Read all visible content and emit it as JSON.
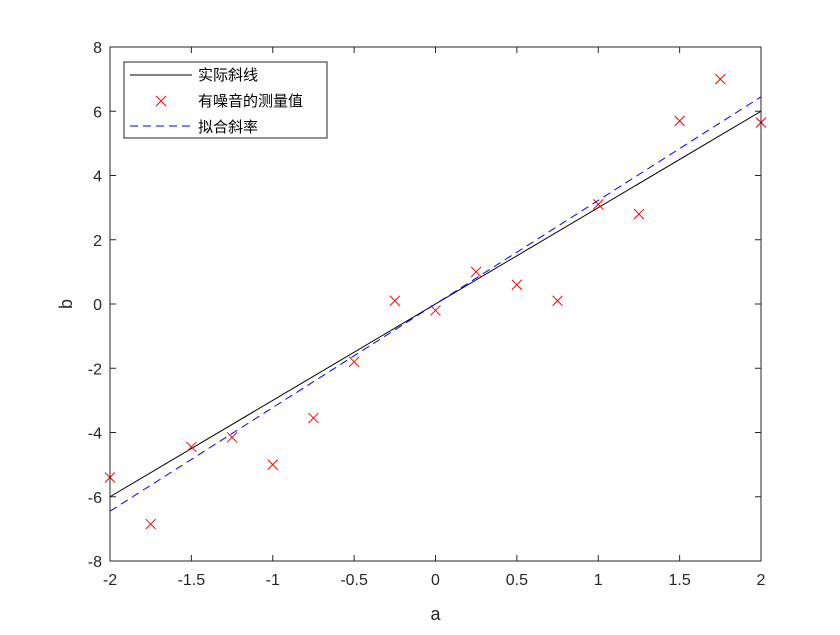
{
  "chart_data": {
    "type": "scatter",
    "title": "",
    "xlabel": "a",
    "ylabel": "b",
    "xlim": [
      -2,
      2
    ],
    "ylim": [
      -8,
      8
    ],
    "x_ticks": [
      -2,
      -1.5,
      -1,
      -0.5,
      0,
      0.5,
      1,
      1.5,
      2
    ],
    "x_tick_labels": [
      "-2",
      "-1.5",
      "-1",
      "-0.5",
      "0",
      "0.5",
      "1",
      "1.5",
      "2"
    ],
    "y_ticks": [
      -8,
      -6,
      -4,
      -2,
      0,
      2,
      4,
      6,
      8
    ],
    "y_tick_labels": [
      "-8",
      "-6",
      "-4",
      "-2",
      "0",
      "2",
      "4",
      "6",
      "8"
    ],
    "grid": false,
    "legend_position": "top-left",
    "series": [
      {
        "name": "实际斜线",
        "kind": "line",
        "style": "solid",
        "color": "#000000",
        "x": [
          -2,
          2
        ],
        "y": [
          -6,
          6
        ]
      },
      {
        "name": "有噪音的测量值",
        "kind": "scatter",
        "marker": "x",
        "color": "#ff0000",
        "x": [
          -2,
          -1.75,
          -1.5,
          -1.25,
          -1,
          -0.75,
          -0.5,
          -0.25,
          0,
          0.25,
          0.5,
          0.75,
          1,
          1.25,
          1.5,
          1.75,
          2
        ],
        "y": [
          -5.4,
          -6.85,
          -4.45,
          -4.15,
          -5.0,
          -3.55,
          -1.8,
          0.1,
          -0.2,
          1.0,
          0.6,
          0.1,
          3.1,
          2.8,
          5.7,
          7.0,
          5.65
        ]
      },
      {
        "name": "拟合斜率",
        "kind": "line",
        "style": "dashed",
        "color": "#0000ff",
        "x": [
          -2,
          2
        ],
        "y": [
          -6.45,
          6.45
        ]
      }
    ]
  }
}
